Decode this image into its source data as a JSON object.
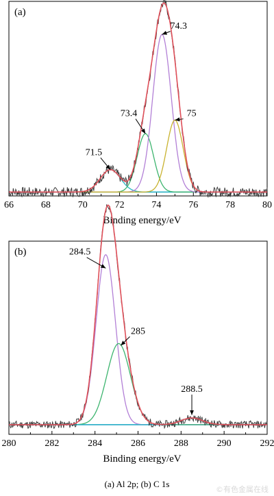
{
  "caption": "(a) Al 2p; (b) C 1s",
  "watermark": "©有色金属在线",
  "colors": {
    "raw": "#3a3a3a",
    "envelope": "#e0505a",
    "baseline": "#2f8fd0",
    "axis": "#000000",
    "arrow": "#000000"
  },
  "chart_data": [
    {
      "type": "line",
      "panel_label": "(a)",
      "xlabel": "Binding energy/eV",
      "ylabel": "",
      "xlim": [
        66,
        80
      ],
      "xticks": [
        66,
        68,
        70,
        72,
        74,
        76,
        78,
        80
      ],
      "ylim": [
        0,
        1.0
      ],
      "baseline": 0.02,
      "series": [
        {
          "role": "raw",
          "color": "#3a3a3a",
          "noise": 0.025,
          "seed": 7
        },
        {
          "role": "envelope",
          "color": "#e0505a"
        },
        {
          "role": "baseline",
          "color": "#2f8fd0"
        }
      ],
      "components": [
        {
          "center": 71.5,
          "height": 0.115,
          "width": 0.55,
          "color": "#2ab7c4"
        },
        {
          "center": 73.4,
          "height": 0.3,
          "width": 0.45,
          "color": "#3cb46e"
        },
        {
          "center": 74.3,
          "height": 0.81,
          "width": 0.5,
          "color": "#b27fd6"
        },
        {
          "center": 75.0,
          "height": 0.37,
          "width": 0.45,
          "color": "#c8b22e"
        }
      ],
      "annotations": [
        {
          "text": "71.5",
          "x": 71.5,
          "y": 0.135,
          "label_x": 70.6,
          "label_y": 0.21
        },
        {
          "text": "73.4",
          "x": 73.4,
          "y": 0.32,
          "label_x": 72.5,
          "label_y": 0.41
        },
        {
          "text": "74.3",
          "x": 74.3,
          "y": 0.83,
          "label_x": 75.2,
          "label_y": 0.86
        },
        {
          "text": "75",
          "x": 75.0,
          "y": 0.39,
          "label_x": 75.9,
          "label_y": 0.41
        }
      ]
    },
    {
      "type": "line",
      "panel_label": "(b)",
      "xlabel": "Binding energy/eV",
      "ylabel": "",
      "xlim": [
        280,
        292
      ],
      "xticks": [
        280,
        282,
        284,
        286,
        288,
        290,
        292
      ],
      "ylim": [
        0,
        1.0
      ],
      "baseline": 0.05,
      "series": [
        {
          "role": "raw",
          "color": "#3a3a3a",
          "noise": 0.02,
          "seed": 11
        },
        {
          "role": "envelope",
          "color": "#e0505a"
        },
        {
          "role": "baseline",
          "color": "#2f8fd0"
        }
      ],
      "components": [
        {
          "center": 284.5,
          "height": 0.88,
          "width": 0.45,
          "color": "#b27fd6"
        },
        {
          "center": 285.1,
          "height": 0.42,
          "width": 0.55,
          "color": "#3cb46e"
        },
        {
          "center": 288.5,
          "height": 0.035,
          "width": 0.5,
          "color": "#2ab7c4"
        }
      ],
      "annotations": [
        {
          "text": "284.5",
          "x": 284.5,
          "y": 0.86,
          "label_x": 283.3,
          "label_y": 0.93
        },
        {
          "text": "285",
          "x": 285.2,
          "y": 0.46,
          "label_x": 286.0,
          "label_y": 0.52
        },
        {
          "text": "288.5",
          "x": 288.5,
          "y": 0.1,
          "label_x": 288.5,
          "label_y": 0.22
        }
      ]
    }
  ]
}
